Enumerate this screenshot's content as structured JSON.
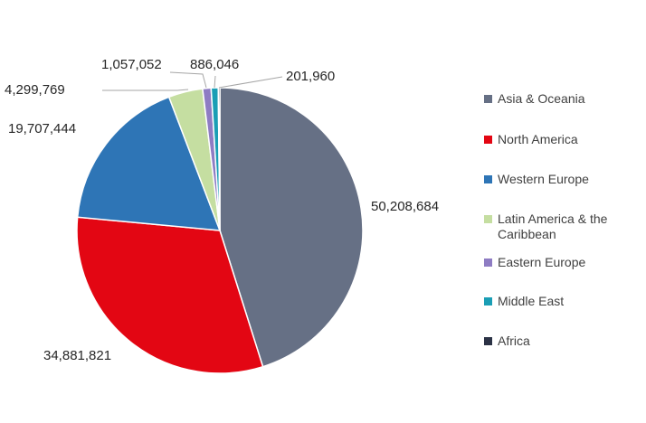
{
  "chart_data": {
    "type": "pie",
    "title": "",
    "legend_position": "right",
    "categories": [
      "Asia & Oceania",
      "North America",
      "Western Europe",
      "Latin America & the Caribbean",
      "Eastern Europe",
      "Middle East",
      "Africa"
    ],
    "values": [
      50208684,
      34881821,
      19707444,
      4299769,
      1057052,
      886046,
      201960
    ],
    "value_labels": [
      "50,208,684",
      "34,881,821",
      "19,707,444",
      "4,299,769",
      "1,057,052",
      "886,046",
      "201,960"
    ],
    "colors": [
      "#667085",
      "#e30613",
      "#2e75b6",
      "#c5dea1",
      "#8e7cc3",
      "#1a9eb5",
      "#2b3245"
    ]
  }
}
